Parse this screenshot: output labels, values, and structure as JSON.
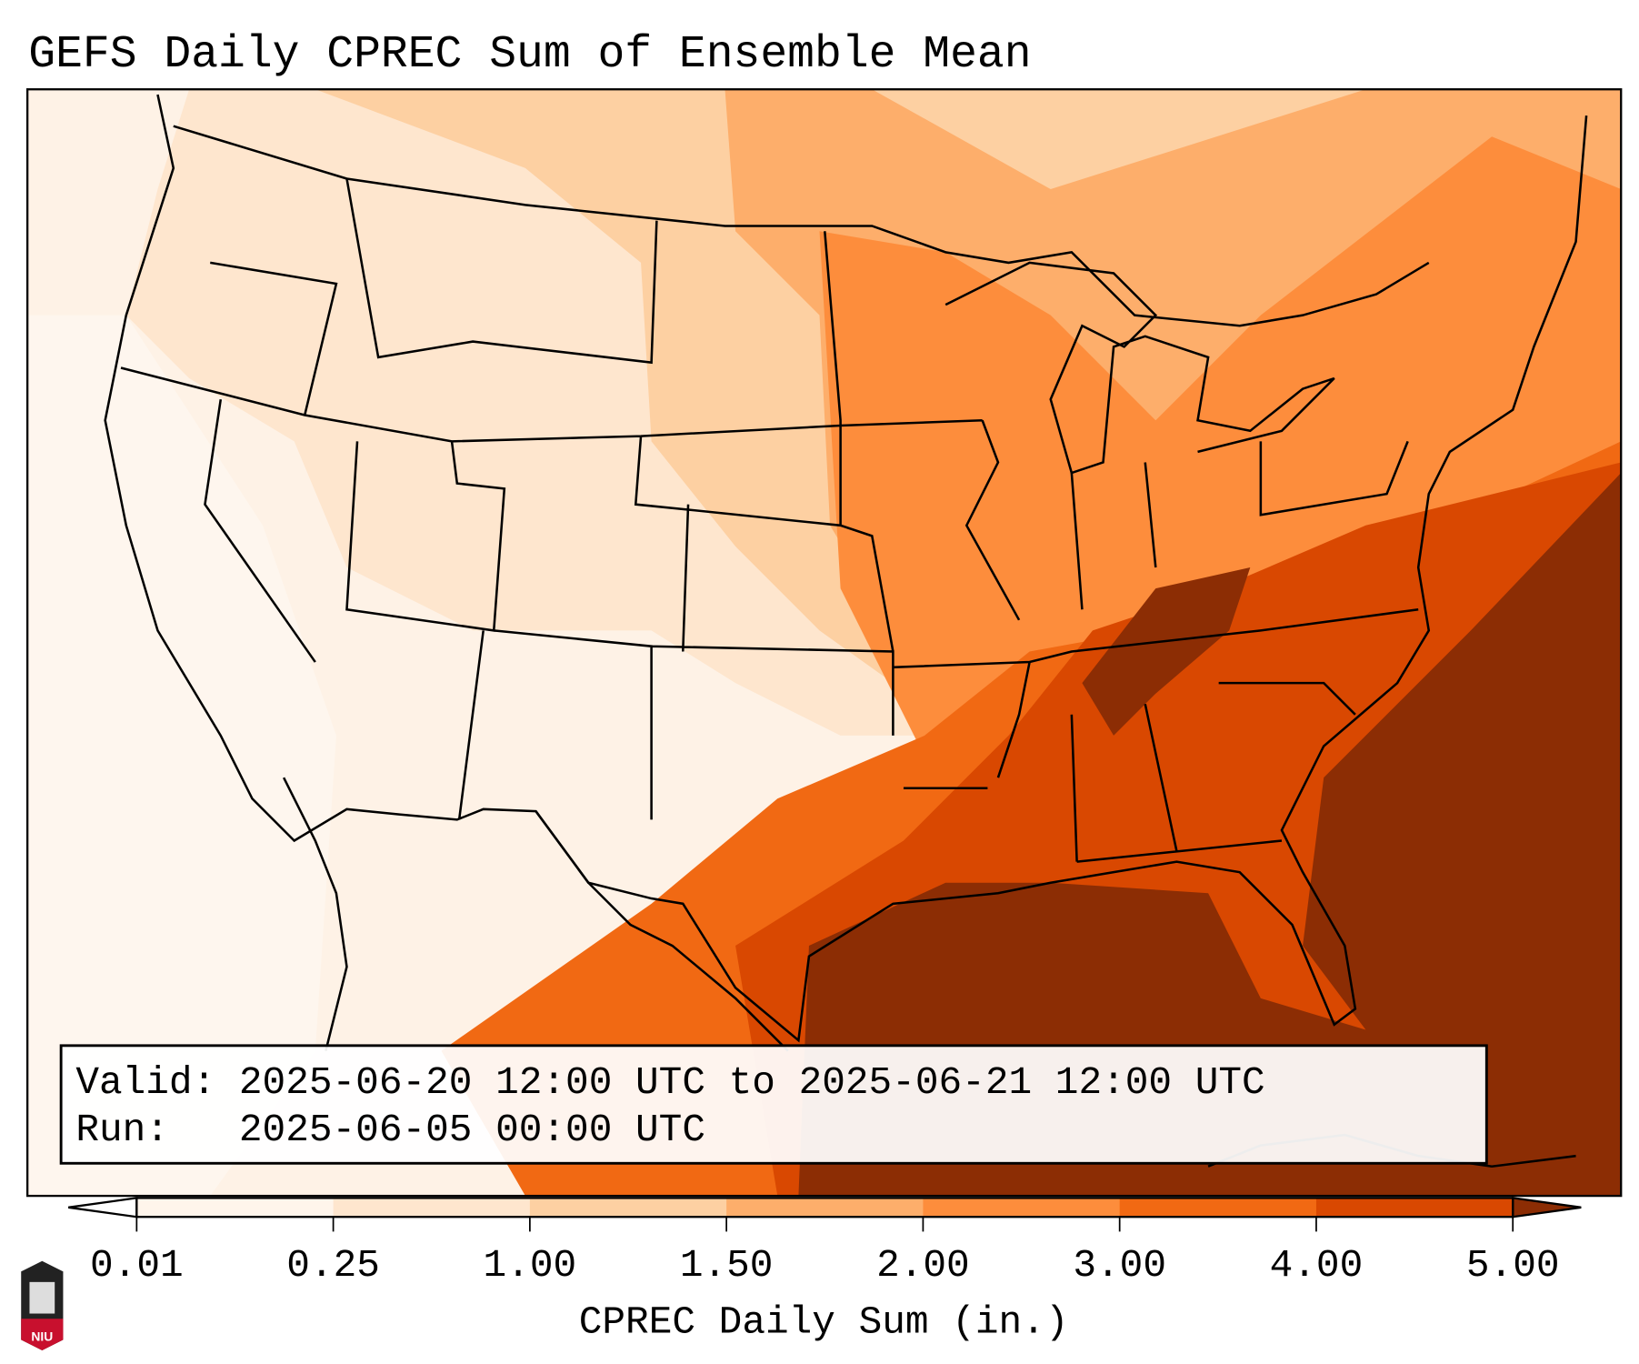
{
  "title": "GEFS Daily CPREC Sum of Ensemble Mean",
  "info_box": {
    "valid_line": "Valid: 2025-06-20 12:00 UTC to 2025-06-21 12:00 UTC",
    "run_line": "Run:   2025-06-05 00:00 UTC"
  },
  "colorbar": {
    "label": "CPREC Daily Sum (in.)",
    "ticks": [
      "0.01",
      "0.25",
      "1.00",
      "1.50",
      "2.00",
      "3.00",
      "4.00",
      "5.00"
    ],
    "colors": [
      "#fff5eb",
      "#fee6ce",
      "#fdd0a2",
      "#fdae6b",
      "#fd8d3c",
      "#f16913",
      "#d94801",
      "#8c2d04"
    ],
    "under_color": "#ffffff",
    "over_color": "#8c2d04"
  },
  "logo": {
    "text": "NIU"
  }
}
